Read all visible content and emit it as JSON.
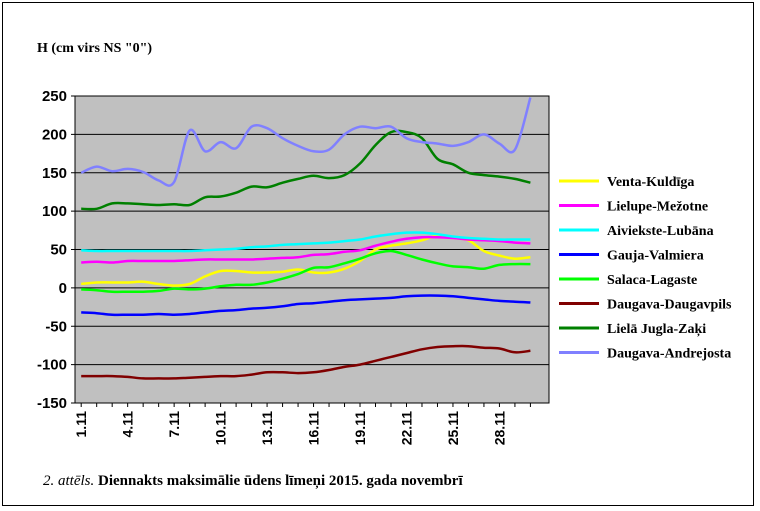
{
  "caption": {
    "number": "2. attēls.",
    "text": "Diennakts maksimālie ūdens līmeņi 2015. gada novembrī"
  },
  "chart_data": {
    "type": "line",
    "ylabel": "H (cm virs NS \"0\")",
    "ylim": [
      -150,
      250
    ],
    "yticks": [
      250,
      200,
      150,
      100,
      50,
      0,
      -50,
      -100,
      -150
    ],
    "x": [
      1,
      2,
      3,
      4,
      5,
      6,
      7,
      8,
      9,
      10,
      11,
      12,
      13,
      14,
      15,
      16,
      17,
      18,
      19,
      20,
      21,
      22,
      23,
      24,
      25,
      26,
      27,
      28,
      29,
      30
    ],
    "xticks": [
      {
        "x": 1,
        "label": "1.11"
      },
      {
        "x": 4,
        "label": "4.11"
      },
      {
        "x": 7,
        "label": "7.11"
      },
      {
        "x": 10,
        "label": "10.11"
      },
      {
        "x": 13,
        "label": "13.11"
      },
      {
        "x": 16,
        "label": "16.11"
      },
      {
        "x": 19,
        "label": "19.11"
      },
      {
        "x": 22,
        "label": "22.11"
      },
      {
        "x": 25,
        "label": "25.11"
      },
      {
        "x": 28,
        "label": "28.11"
      }
    ],
    "grid": true,
    "legend_position": "right",
    "series": [
      {
        "name": "Venta-Kuldīga",
        "color": "#ffff00",
        "values": [
          5,
          7,
          7,
          7,
          8,
          5,
          3,
          5,
          15,
          22,
          22,
          20,
          20,
          21,
          24,
          20,
          20,
          25,
          35,
          50,
          55,
          58,
          62,
          68,
          65,
          62,
          48,
          42,
          38,
          40
        ]
      },
      {
        "name": "Lielupe-Mežotne",
        "color": "#ff00ff",
        "values": [
          33,
          34,
          33,
          35,
          35,
          35,
          35,
          36,
          37,
          37,
          37,
          37,
          38,
          39,
          40,
          43,
          44,
          47,
          49,
          55,
          60,
          64,
          66,
          66,
          65,
          63,
          62,
          61,
          59,
          58
        ]
      },
      {
        "name": "Aiviekste-Lubāna",
        "color": "#00ffff",
        "values": [
          49,
          48,
          48,
          48,
          48,
          48,
          48,
          48,
          49,
          50,
          51,
          53,
          54,
          56,
          57,
          58,
          59,
          61,
          63,
          67,
          70,
          72,
          72,
          70,
          67,
          65,
          64,
          63,
          63,
          63
        ]
      },
      {
        "name": "Gauja-Valmiera",
        "color": "#0000ff",
        "values": [
          -32,
          -33,
          -35,
          -35,
          -35,
          -34,
          -35,
          -34,
          -32,
          -30,
          -29,
          -27,
          -26,
          -24,
          -21,
          -20,
          -18,
          -16,
          -15,
          -14,
          -13,
          -11,
          -10,
          -10,
          -11,
          -13,
          -15,
          -17,
          -18,
          -19
        ]
      },
      {
        "name": "Salaca-Lagaste",
        "color": "#00ff00",
        "values": [
          -2,
          -3,
          -5,
          -5,
          -5,
          -4,
          -1,
          -2,
          -1,
          2,
          4,
          4,
          7,
          12,
          18,
          26,
          27,
          32,
          38,
          45,
          48,
          43,
          37,
          32,
          28,
          27,
          25,
          30,
          31,
          31
        ]
      },
      {
        "name": "Daugava-Daugavpils",
        "color": "#800000",
        "values": [
          -115,
          -115,
          -115,
          -116,
          -118,
          -118,
          -118,
          -117,
          -116,
          -115,
          -115,
          -113,
          -110,
          -110,
          -111,
          -110,
          -107,
          -103,
          -100,
          -95,
          -90,
          -85,
          -80,
          -77,
          -76,
          -76,
          -78,
          -79,
          -84,
          -82
        ]
      },
      {
        "name": "Lielā Jugla-Zaķi",
        "color": "#008000",
        "values": [
          103,
          103,
          110,
          110,
          109,
          108,
          109,
          108,
          118,
          119,
          124,
          132,
          131,
          137,
          142,
          146,
          143,
          147,
          162,
          186,
          203,
          203,
          195,
          168,
          161,
          150,
          147,
          145,
          142,
          137
        ]
      },
      {
        "name": "Daugava-Andrejosta",
        "color": "#8080ff",
        "values": [
          150,
          158,
          152,
          155,
          151,
          140,
          138,
          205,
          178,
          190,
          182,
          210,
          208,
          195,
          185,
          178,
          180,
          200,
          210,
          208,
          210,
          195,
          190,
          188,
          185,
          190,
          200,
          188,
          180,
          248
        ]
      }
    ]
  }
}
